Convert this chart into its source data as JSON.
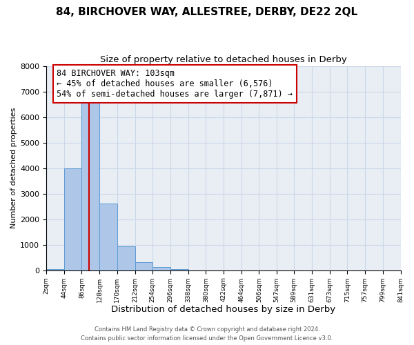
{
  "title": "84, BIRCHOVER WAY, ALLESTREE, DERBY, DE22 2QL",
  "subtitle": "Size of property relative to detached houses in Derby",
  "xlabel": "Distribution of detached houses by size in Derby",
  "ylabel": "Number of detached properties",
  "bin_edges": [
    2,
    44,
    86,
    128,
    170,
    212,
    254,
    296,
    338,
    380,
    422,
    464,
    506,
    547,
    589,
    631,
    673,
    715,
    757,
    799,
    841
  ],
  "bar_heights": [
    50,
    4000,
    6576,
    2600,
    950,
    320,
    130,
    50,
    0,
    0,
    0,
    0,
    0,
    0,
    0,
    0,
    0,
    0,
    0,
    0
  ],
  "bar_color": "#aec6e8",
  "bar_edgecolor": "#5b9bd5",
  "vline_color": "#cc0000",
  "vline_x": 103,
  "annotation_line1": "84 BIRCHOVER WAY: 103sqm",
  "annotation_line2": "← 45% of detached houses are smaller (6,576)",
  "annotation_line3": "54% of semi-detached houses are larger (7,871) →",
  "annotation_box_facecolor": "white",
  "annotation_box_edgecolor": "#cc0000",
  "ylim": [
    0,
    8000
  ],
  "yticks": [
    0,
    1000,
    2000,
    3000,
    4000,
    5000,
    6000,
    7000,
    8000
  ],
  "tick_labels": [
    "2sqm",
    "44sqm",
    "86sqm",
    "128sqm",
    "170sqm",
    "212sqm",
    "254sqm",
    "296sqm",
    "338sqm",
    "380sqm",
    "422sqm",
    "464sqm",
    "506sqm",
    "547sqm",
    "589sqm",
    "631sqm",
    "673sqm",
    "715sqm",
    "757sqm",
    "799sqm",
    "841sqm"
  ],
  "grid_color": "#ccd8e8",
  "background_color": "#e8eef4",
  "footer_line1": "Contains HM Land Registry data © Crown copyright and database right 2024.",
  "footer_line2": "Contains public sector information licensed under the Open Government Licence v3.0.",
  "title_fontsize": 11,
  "subtitle_fontsize": 9.5,
  "xlabel_fontsize": 9.5,
  "ylabel_fontsize": 8,
  "annotation_fontsize": 8.5,
  "footer_fontsize": 6
}
